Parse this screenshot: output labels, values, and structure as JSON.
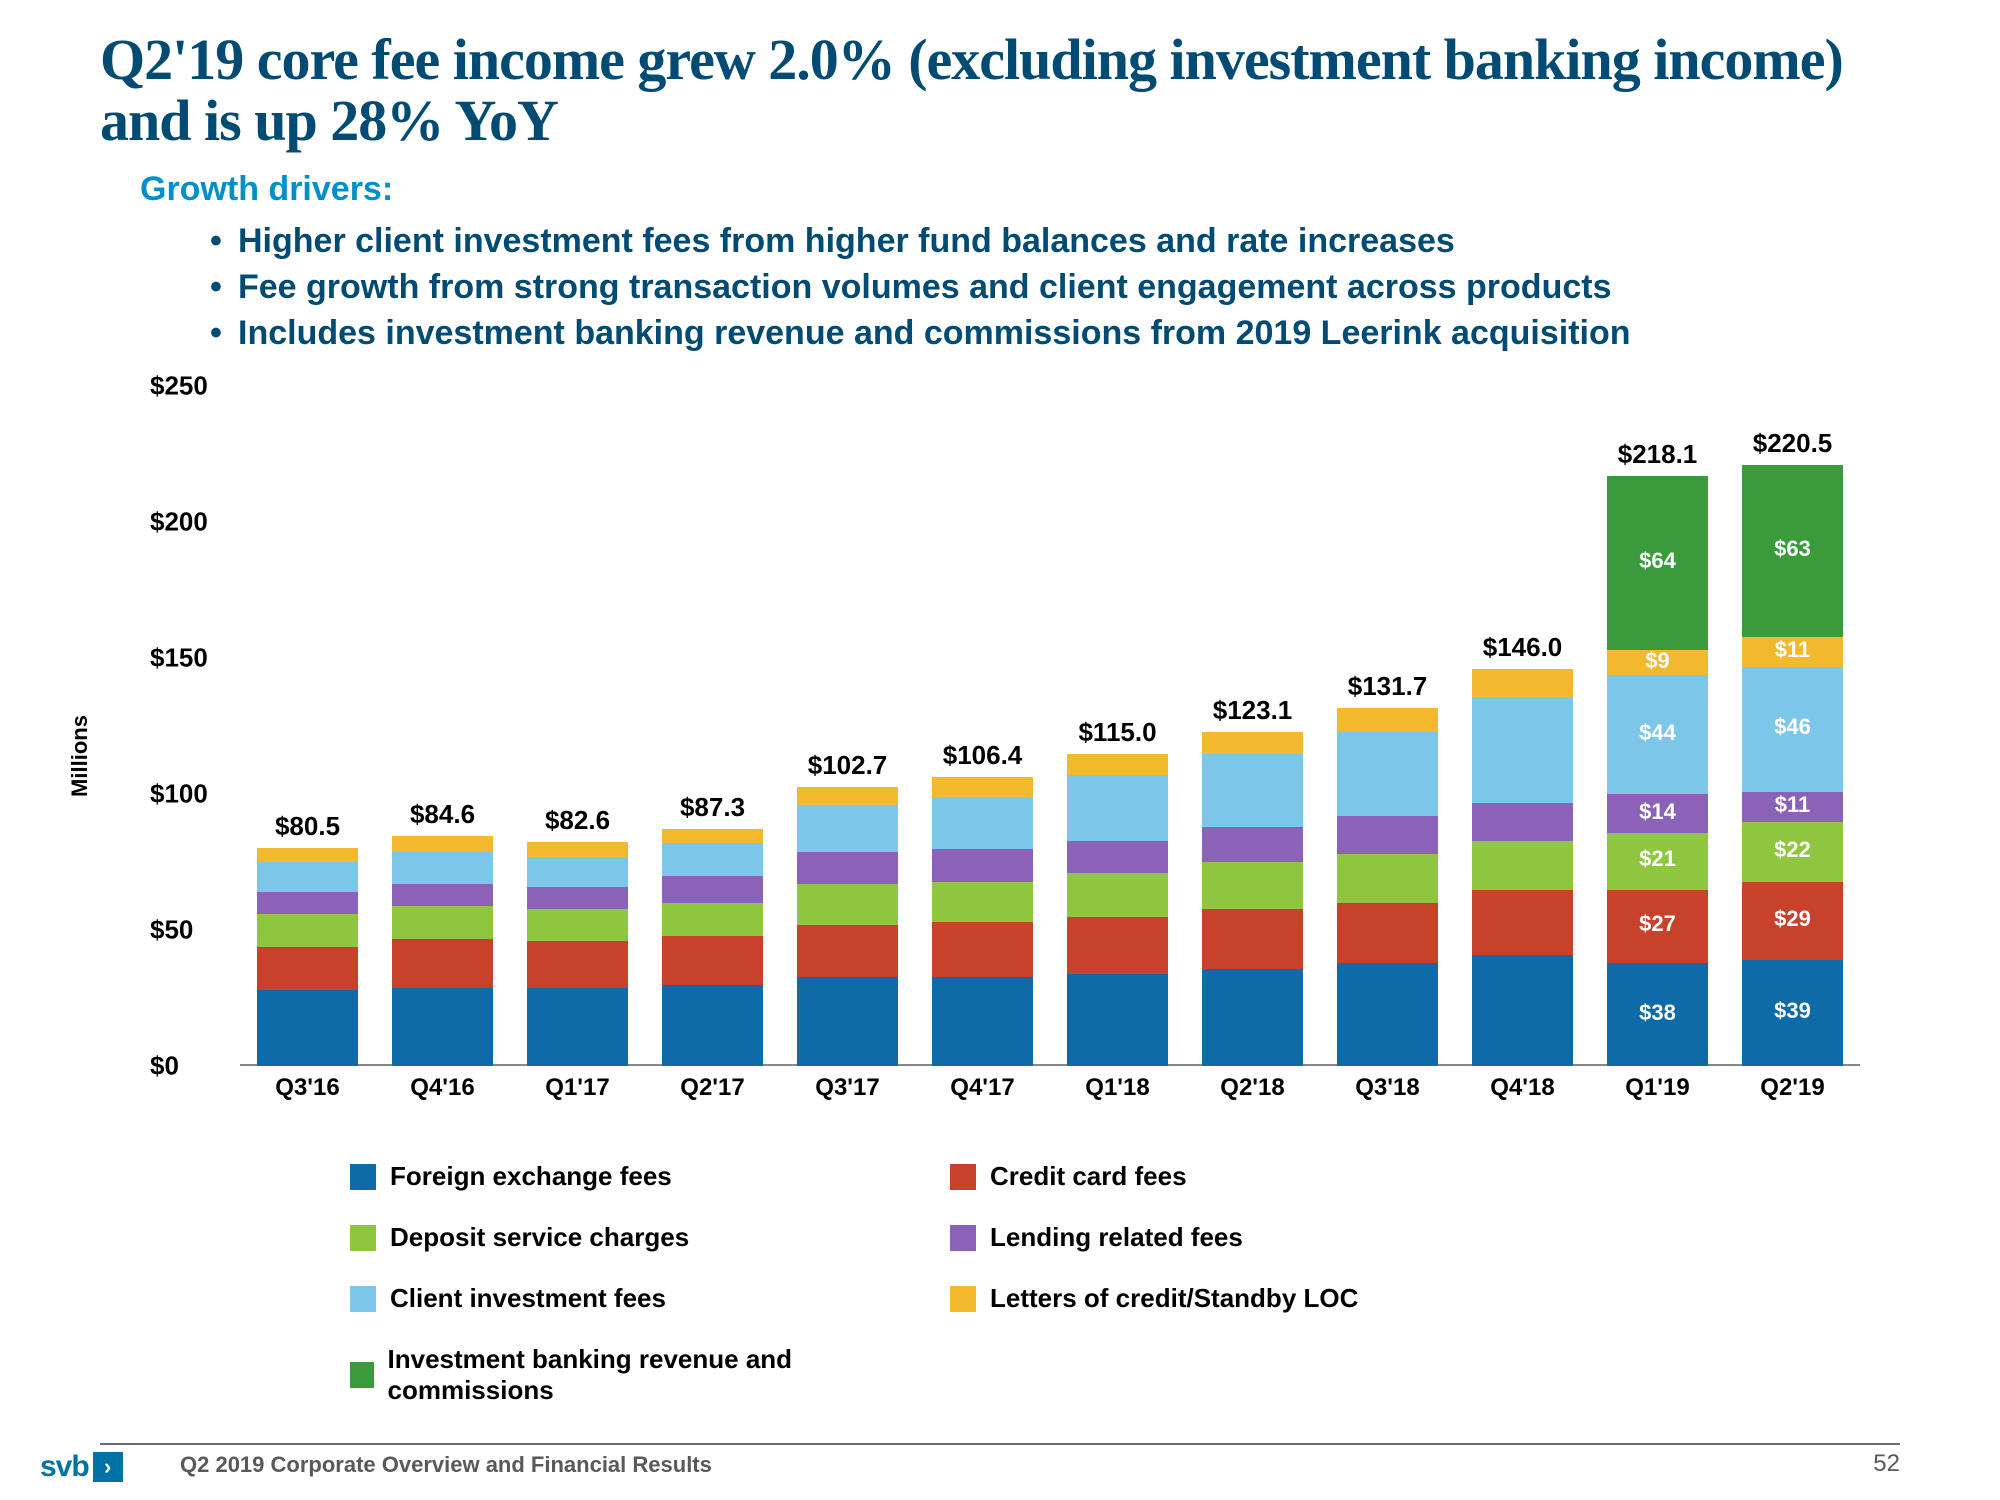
{
  "title": "Q2'19 core fee income grew 2.0% (excluding investment banking income) and is up 28% YoY",
  "growth_label": "Growth drivers:",
  "bullets": [
    "Higher client investment fees from higher fund balances and rate increases",
    "Fee growth from strong transaction volumes and client engagement across products",
    "Includes investment banking revenue and commissions from 2019 Leerink acquisition"
  ],
  "chart": {
    "type": "stacked-bar",
    "y_axis_label": "Millions",
    "ylim": [
      0,
      250
    ],
    "ytick_step": 50,
    "ytick_prefix": "$",
    "background_color": "#ffffff",
    "bar_width_ratio": 0.75,
    "title_fontsize": 58,
    "label_fontsize": 26,
    "categories": [
      "Q3'16",
      "Q4'16",
      "Q1'17",
      "Q2'17",
      "Q3'17",
      "Q4'17",
      "Q1'18",
      "Q2'18",
      "Q3'18",
      "Q4'18",
      "Q1'19",
      "Q2'19"
    ],
    "totals": [
      "$80.5",
      "$84.6",
      "$82.6",
      "$87.3",
      "$102.7",
      "$106.4",
      "$115.0",
      "$123.1",
      "$131.7",
      "$146.0",
      "$218.1",
      "$220.5"
    ],
    "series": [
      {
        "name": "Foreign exchange fees",
        "color": "#0e6ba8",
        "values": [
          28,
          29,
          29,
          30,
          33,
          33,
          34,
          36,
          38,
          41,
          38,
          39
        ]
      },
      {
        "name": "Credit card fees",
        "color": "#c8412a",
        "values": [
          16,
          18,
          17,
          18,
          19,
          20,
          21,
          22,
          22,
          24,
          27,
          29
        ]
      },
      {
        "name": "Deposit service charges",
        "color": "#8fc640",
        "values": [
          12,
          12,
          12,
          12,
          15,
          15,
          16,
          17,
          18,
          18,
          21,
          22
        ]
      },
      {
        "name": "Lending related fees",
        "color": "#8a63b8",
        "values": [
          8,
          8,
          8,
          10,
          12,
          12,
          12,
          13,
          14,
          14,
          14,
          11
        ]
      },
      {
        "name": "Client investment fees",
        "color": "#7cc6ea",
        "values": [
          11,
          12,
          11,
          12,
          17,
          19,
          24,
          27,
          31,
          39,
          44,
          46
        ]
      },
      {
        "name": "Letters of credit/Standby LOC",
        "color": "#f2b92e",
        "values": [
          5.5,
          5.6,
          5.6,
          5.3,
          6.7,
          7.4,
          8,
          8.1,
          8.7,
          10,
          9,
          11
        ]
      },
      {
        "name": "Investment banking revenue and commissions",
        "color": "#3a9b3a",
        "values": [
          0,
          0,
          0,
          0,
          0,
          0,
          0,
          0,
          0,
          0,
          64,
          63
        ]
      }
    ],
    "show_segment_labels_last_n": 2,
    "segment_label_prefix": "$"
  },
  "legend_order": [
    0,
    1,
    2,
    3,
    4,
    5,
    6
  ],
  "legend_layout": [
    [
      0,
      1
    ],
    [
      2,
      3
    ],
    [
      4,
      5
    ],
    [
      6,
      null
    ]
  ],
  "footer": {
    "text": "Q2 2019 Corporate Overview and Financial Results",
    "page": "52",
    "logo_text": "svb"
  },
  "colors": {
    "title": "#004b73",
    "accent": "#0090c9",
    "text": "#000000",
    "footer": "#595959"
  }
}
